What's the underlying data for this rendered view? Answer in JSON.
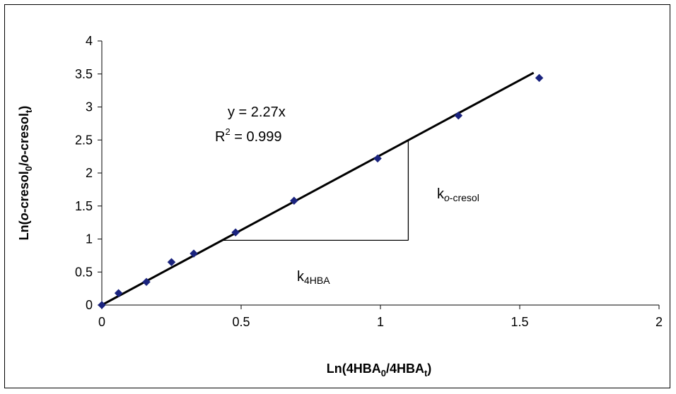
{
  "chart_data": {
    "type": "scatter",
    "title": "",
    "xlabel": {
      "base": "Ln(4HBA",
      "sub0": "0",
      "mid": "/4HBA",
      "sub1": "t",
      "end": ")"
    },
    "ylabel": {
      "base": "Ln(",
      "it1": "o",
      "mid1": "-cresol",
      "sub0": "0",
      "slash": "/",
      "it2": "o",
      "mid2": "-cresol",
      "sub1": "t",
      "end": ")"
    },
    "xlim": [
      0,
      2
    ],
    "ylim": [
      0,
      4
    ],
    "x_ticks": [
      "0",
      "0.5",
      "1",
      "1.5",
      "2"
    ],
    "y_ticks": [
      "0",
      "0.5",
      "1",
      "1.5",
      "2",
      "2.5",
      "3",
      "3.5",
      "4"
    ],
    "grid": false,
    "legend": "none",
    "marker_color": "#1a237e",
    "series": [
      {
        "marker": "diamond",
        "x": [
          0,
          0.06,
          0.16,
          0.25,
          0.33,
          0.48,
          0.69,
          0.99,
          1.28,
          1.57
        ],
        "y": [
          0,
          0.18,
          0.35,
          0.65,
          0.78,
          1.1,
          1.58,
          2.22,
          2.87,
          3.44
        ]
      }
    ],
    "fit": {
      "slope": 2.27,
      "x_range": [
        0,
        1.55
      ]
    },
    "annotations": {
      "equation": "y = 2.27x",
      "r2_base": "R",
      "r2_sup": "2",
      "r2_rest": " = 0.999",
      "k_cresol_base": "k",
      "k_cresol_it": "o",
      "k_cresol_sub": "-cresol",
      "k_hba_base": "k",
      "k_hba_sub": "4HBA"
    },
    "triangle": {
      "x_start": 0.43,
      "x_end": 1.1,
      "y": 0.98
    }
  }
}
